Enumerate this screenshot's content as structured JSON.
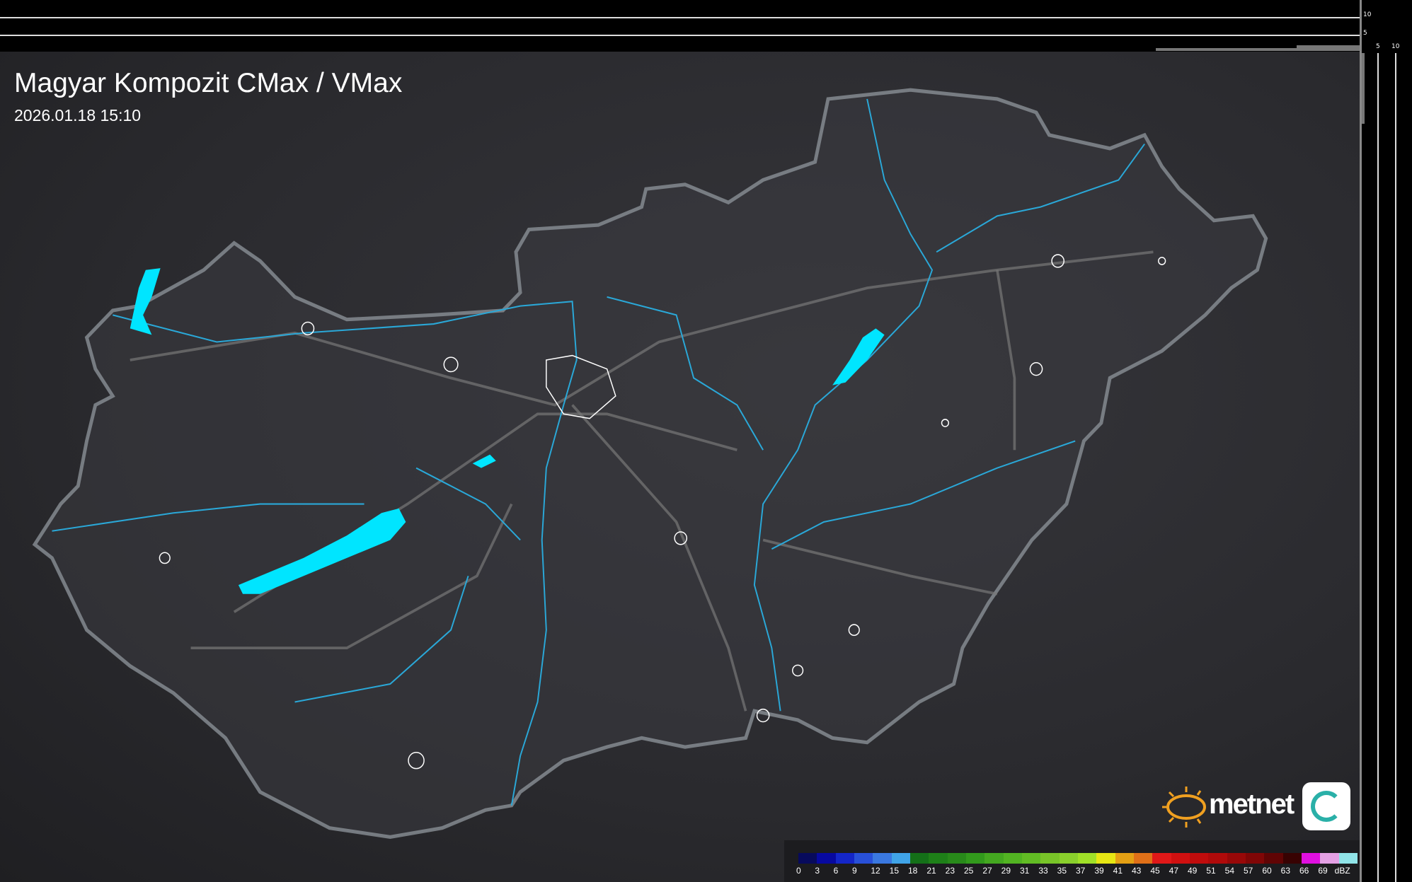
{
  "header": {
    "title": "Magyar Kompozit CMax / VMax",
    "timestamp": "2026.01.18 15:10"
  },
  "top_panel": {
    "ticks": [
      "10",
      "5"
    ]
  },
  "right_panel": {
    "ticks": [
      "5",
      "10"
    ]
  },
  "logo": {
    "text": "metnet"
  },
  "legend": {
    "unit": "dBZ",
    "labels": [
      "0",
      "3",
      "6",
      "9",
      "12",
      "15",
      "18",
      "21",
      "23",
      "25",
      "27",
      "29",
      "31",
      "33",
      "35",
      "37",
      "39",
      "41",
      "43",
      "45",
      "47",
      "49",
      "51",
      "54",
      "57",
      "60",
      "63",
      "66",
      "69"
    ],
    "colors": [
      "#070a5c",
      "#0709a0",
      "#1426c8",
      "#2850d8",
      "#3a78e0",
      "#40a4e8",
      "#147018",
      "#1e8018",
      "#288a1a",
      "#329a1c",
      "#44a820",
      "#52b422",
      "#62bc24",
      "#78c428",
      "#8ad02c",
      "#a0e028",
      "#e6e614",
      "#e4a014",
      "#e07018",
      "#e01818",
      "#d01010",
      "#c00c0c",
      "#b00a0a",
      "#980808",
      "#800606",
      "#600404",
      "#380202",
      "#e010e0",
      "#e4a0e4",
      "#90e4e8"
    ]
  },
  "map": {
    "water_color": "#00e5ff",
    "border_color": "#8a8f96",
    "river_color": "#2aa8d8"
  }
}
